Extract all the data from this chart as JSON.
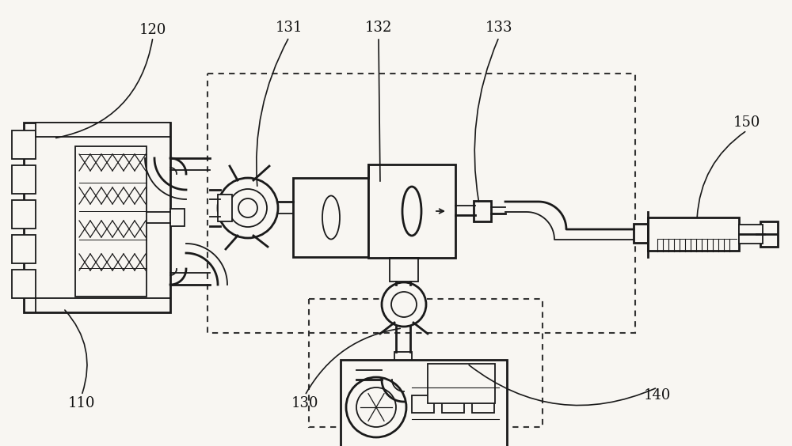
{
  "bg_color": "#f8f6f2",
  "line_color": "#1a1a1a",
  "label_color": "#111111",
  "fig_width": 10.0,
  "fig_height": 5.64,
  "label_fontsize": 13
}
